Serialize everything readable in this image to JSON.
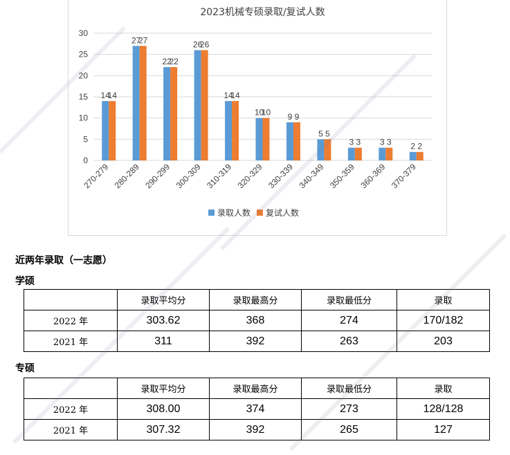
{
  "chart_data": {
    "type": "bar",
    "title": "2023机械专硕录取/复试人数",
    "categories": [
      "270-279",
      "280-289",
      "290-299",
      "300-309",
      "310-319",
      "320-329",
      "330-339",
      "340-349",
      "350-359",
      "360-369",
      "370-379"
    ],
    "series": [
      {
        "name": "录取人数",
        "values": [
          14,
          27,
          22,
          26,
          14,
          10,
          9,
          5,
          3,
          3,
          2
        ],
        "color": "#5b9bd5"
      },
      {
        "name": "复试人数",
        "values": [
          14,
          27,
          22,
          26,
          14,
          10,
          9,
          5,
          3,
          3,
          2
        ],
        "color": "#ed7d31"
      }
    ],
    "yticks": [
      0,
      5,
      10,
      15,
      20,
      25,
      30
    ],
    "ylim": [
      0,
      30
    ],
    "grid": true,
    "legend": "bottom"
  },
  "heading": "近两年录取（一志愿）",
  "academic": {
    "title": "学硕",
    "headers": [
      "",
      "录取平均分",
      "录取最高分",
      "录取最低分",
      "录取"
    ],
    "rows": [
      {
        "year": "2022 年",
        "avg": "303.62",
        "max": "368",
        "min": "274",
        "admit": "170/182"
      },
      {
        "year": "2021 年",
        "avg": "311",
        "max": "392",
        "min": "263",
        "admit": "203"
      }
    ]
  },
  "professional": {
    "title": "专硕",
    "headers": [
      "",
      "录取平均分",
      "录取最高分",
      "录取最低分",
      "录取"
    ],
    "rows": [
      {
        "year": "2022 年",
        "avg": "308.00",
        "max": "374",
        "min": "273",
        "admit": "128/128"
      },
      {
        "year": "2021 年",
        "avg": "307.32",
        "max": "392",
        "min": "265",
        "admit": "127"
      }
    ]
  }
}
